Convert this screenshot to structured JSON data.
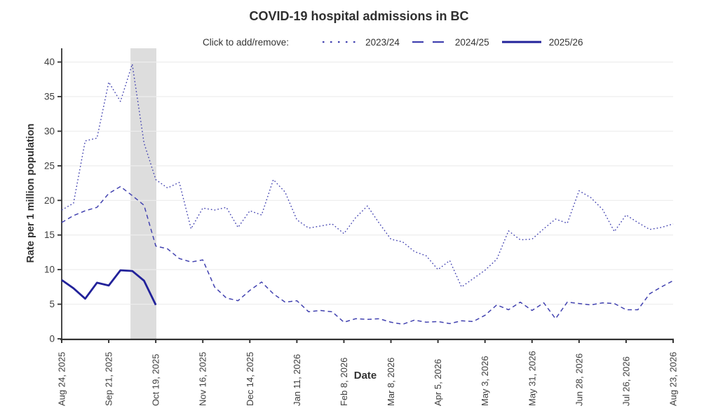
{
  "title": "COVID-19 hospital admissions in BC",
  "legend": {
    "prompt": "Click to add/remove:",
    "items": [
      {
        "label": "2023/24",
        "style": "dotted"
      },
      {
        "label": "2024/25",
        "style": "dashed"
      },
      {
        "label": "2025/26",
        "style": "solid"
      }
    ]
  },
  "chart_data": {
    "type": "line",
    "title": "COVID-19 hospital admissions in BC",
    "xlabel": "Date",
    "ylabel": "Rate per 1 million population",
    "ylim": [
      0,
      42
    ],
    "yticks": [
      0,
      5,
      10,
      15,
      20,
      25,
      30,
      35,
      40
    ],
    "grid": "horizontal-only",
    "grid_color": "#ededed",
    "axis_color": "#333333",
    "tick_label_color": "#3d3d3d",
    "legend_position": "top-center",
    "x_frequency": "weekly",
    "xtick_labels": [
      "Aug 24, 2025",
      "Sep 21, 2025",
      "Oct 19, 2025",
      "Nov 16, 2025",
      "Dec 14, 2025",
      "Jan 11, 2026",
      "Feb 8, 2026",
      "Mar 8, 2026",
      "Apr 5, 2026",
      "May 3, 2026",
      "May 31, 2026",
      "Jun 28, 2026",
      "Jul 26, 2026",
      "Aug 23, 2026"
    ],
    "xtick_weeks": [
      0,
      4,
      8,
      12,
      16,
      20,
      24,
      28,
      32,
      36,
      40,
      44,
      48,
      52
    ],
    "highlight_band": {
      "from_week": 5.85,
      "to_week": 8.05,
      "color": "#dddddd"
    },
    "series": [
      {
        "name": "2023/24",
        "style": "dotted",
        "color": "#4242b0",
        "width": 1.4,
        "start_week": 0,
        "values": [
          18.6,
          19.6,
          28.6,
          29.0,
          37.1,
          34.3,
          39.7,
          28.3,
          23.0,
          21.8,
          22.6,
          15.9,
          18.9,
          18.6,
          19.0,
          16.1,
          18.5,
          17.9,
          23.0,
          21.2,
          17.2,
          16.0,
          16.3,
          16.6,
          15.2,
          17.5,
          19.2,
          16.7,
          14.4,
          14.0,
          12.6,
          12.0,
          10.0,
          11.3,
          7.5,
          8.7,
          9.9,
          11.5,
          15.6,
          14.3,
          14.4,
          15.9,
          17.3,
          16.7,
          21.4,
          20.4,
          18.7,
          15.5,
          17.9,
          16.8,
          15.8,
          16.1,
          16.6
        ]
      },
      {
        "name": "2024/25",
        "style": "dashed",
        "color": "#4242b0",
        "width": 1.5,
        "start_week": 0,
        "values": [
          16.8,
          17.8,
          18.5,
          19.0,
          21.0,
          22.0,
          20.7,
          19.3,
          13.4,
          13.0,
          11.6,
          11.1,
          11.4,
          7.5,
          5.9,
          5.5,
          7.0,
          8.2,
          6.5,
          5.3,
          5.5,
          3.9,
          4.1,
          3.9,
          2.4,
          2.9,
          2.8,
          2.9,
          2.4,
          2.1,
          2.7,
          2.4,
          2.5,
          2.2,
          2.6,
          2.5,
          3.4,
          4.9,
          4.2,
          5.3,
          4.1,
          5.2,
          2.9,
          5.3,
          5.1,
          4.9,
          5.2,
          5.1,
          4.2,
          4.2,
          6.5,
          7.5,
          8.4
        ]
      },
      {
        "name": "2025/26",
        "style": "solid",
        "color": "#22229a",
        "width": 2.8,
        "start_week": 0,
        "values": [
          8.5,
          7.3,
          5.8,
          8.1,
          7.7,
          9.9,
          9.8,
          8.4,
          4.9
        ]
      }
    ]
  }
}
